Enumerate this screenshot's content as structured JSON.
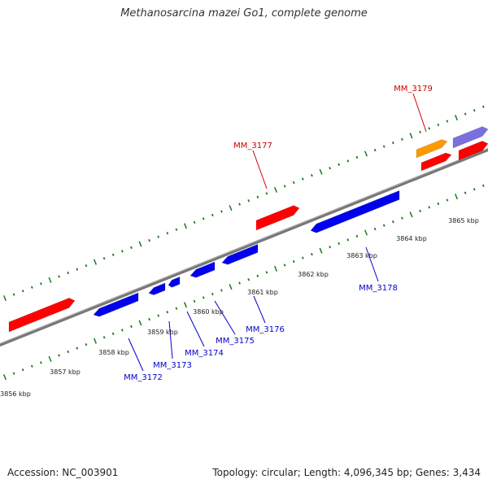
{
  "title": "Methanosarcina mazei Go1, complete genome",
  "footer": {
    "accession": "Accession: NC_003901",
    "summary": "Topology: circular; Length: 4,096,345 bp; Genes: 3,434"
  },
  "colors": {
    "forward_gene": "#ff0000",
    "reverse_gene": "#0000ee",
    "orange_feature": "#ff9900",
    "purple_feature": "#7b6fe0",
    "backbone": "#777777",
    "tick": "#1a7a1a",
    "leader_red": "#cc0000",
    "leader_blue": "#0000cc"
  },
  "scale_labels": [
    "3856 kbp",
    "3857 kbp",
    "3858 kbp",
    "3859 kbp",
    "3860 kbp",
    "3861 kbp",
    "3862 kbp",
    "3863 kbp",
    "3864 kbp",
    "3865 kbp"
  ],
  "genes": [
    {
      "id": "red-gene-1",
      "strand": "forward",
      "color": "forward_gene"
    },
    {
      "id": "MM_3177",
      "strand": "forward",
      "color": "forward_gene"
    },
    {
      "id": "MM_3179",
      "strand": "forward",
      "color": "forward_gene"
    },
    {
      "id": "red-gene-4",
      "strand": "forward",
      "color": "forward_gene"
    },
    {
      "id": "orange-feature",
      "strand": "forward",
      "color": "orange_feature"
    },
    {
      "id": "purple-feature",
      "strand": "forward",
      "color": "purple_feature"
    },
    {
      "id": "MM_3172",
      "strand": "reverse",
      "color": "reverse_gene"
    },
    {
      "id": "MM_3173",
      "strand": "reverse",
      "color": "reverse_gene"
    },
    {
      "id": "MM_3174",
      "strand": "reverse",
      "color": "reverse_gene"
    },
    {
      "id": "MM_3175",
      "strand": "reverse",
      "color": "reverse_gene"
    },
    {
      "id": "MM_3176",
      "strand": "reverse",
      "color": "reverse_gene"
    },
    {
      "id": "MM_3178",
      "strand": "reverse",
      "color": "reverse_gene"
    }
  ],
  "labels": [
    {
      "text": "MM_3177",
      "color": "leader_red"
    },
    {
      "text": "MM_3179",
      "color": "leader_red"
    },
    {
      "text": "MM_3172",
      "color": "leader_blue"
    },
    {
      "text": "MM_3173",
      "color": "leader_blue"
    },
    {
      "text": "MM_3174",
      "color": "leader_blue"
    },
    {
      "text": "MM_3175",
      "color": "leader_blue"
    },
    {
      "text": "MM_3176",
      "color": "leader_blue"
    },
    {
      "text": "MM_3178",
      "color": "leader_blue"
    }
  ]
}
